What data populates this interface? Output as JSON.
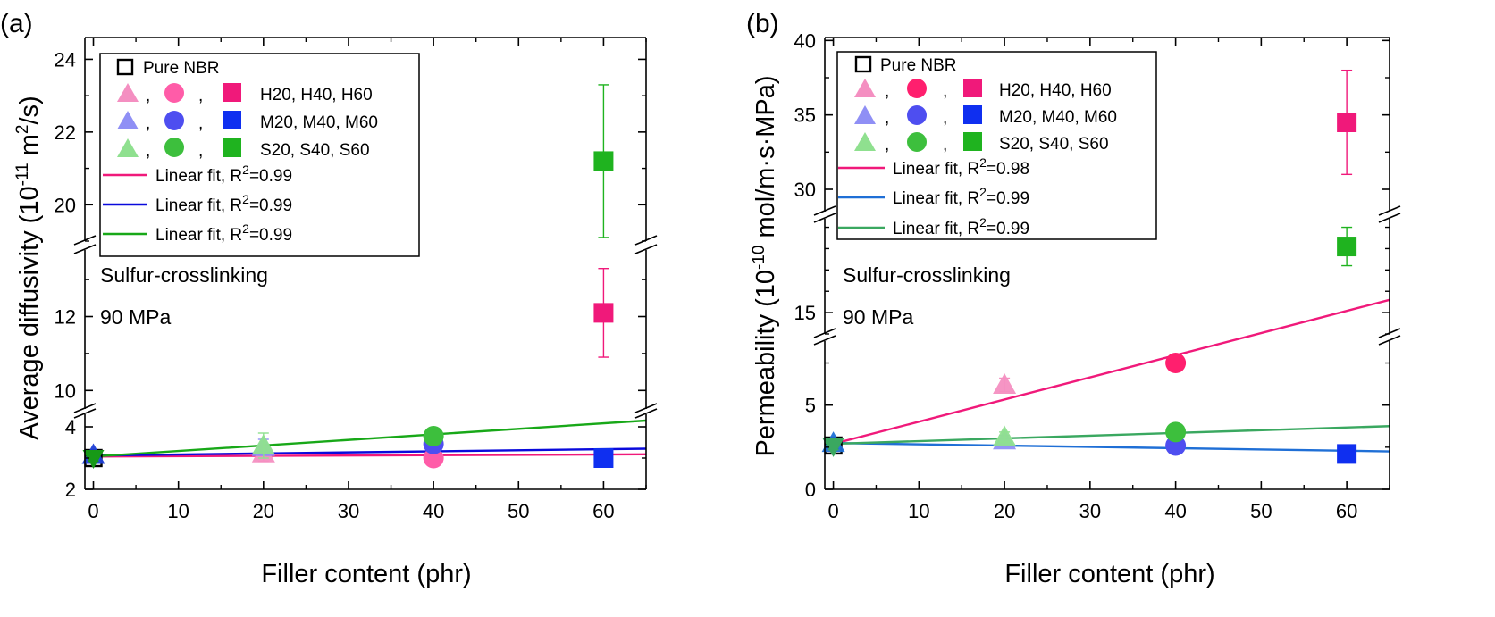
{
  "chart_data": [
    {
      "type": "scatter",
      "panel_label": "(a)",
      "xlabel": "Filler content (phr)",
      "ylabel": "Average diffusivity (10",
      "ylabel_exp": "-11",
      "ylabel_unit": " m",
      "ylabel_unit_exp": "2",
      "ylabel_tail": "/s)",
      "xlim": [
        -1,
        65
      ],
      "xticks": [
        0,
        10,
        20,
        30,
        40,
        50,
        60
      ],
      "y_segments": [
        {
          "range": [
            2,
            4.4
          ],
          "ticks": [
            2,
            4
          ]
        },
        {
          "range": [
            9.5,
            13.8
          ],
          "ticks": [
            10,
            12
          ]
        },
        {
          "range": [
            19,
            24.6
          ],
          "ticks": [
            20,
            22,
            24
          ]
        }
      ],
      "annotations": [
        "Sulfur-crosslinking",
        "90 MPa"
      ],
      "series": [
        {
          "name": "Pure NBR",
          "color": "#000000",
          "shape": "square-open",
          "points": [
            {
              "x": 0,
              "y": 3.0,
              "err": 0.1
            }
          ]
        },
        {
          "name": "H20",
          "color": "#f48fc1",
          "shape": "triangle",
          "points": [
            {
              "x": 20,
              "y": 3.15,
              "err": 0.25
            }
          ]
        },
        {
          "name": "H40",
          "color": "#ff5ca8",
          "shape": "circle",
          "points": [
            {
              "x": 40,
              "y": 3.0,
              "err": 0.15
            }
          ]
        },
        {
          "name": "H60",
          "color": "#f0197a",
          "shape": "square",
          "points": [
            {
              "x": 60,
              "y": 12.1,
              "err": 1.2
            }
          ]
        },
        {
          "name": "M20",
          "color": "#8f8ff5",
          "shape": "triangle",
          "points": [
            {
              "x": 20,
              "y": 3.35,
              "err": 0.25
            }
          ]
        },
        {
          "name": "M40",
          "color": "#4e4ef0",
          "shape": "circle",
          "points": [
            {
              "x": 40,
              "y": 3.45,
              "err": 0.15
            }
          ]
        },
        {
          "name": "M60",
          "color": "#0f2ff0",
          "shape": "square",
          "points": [
            {
              "x": 60,
              "y": 3.0,
              "err": 0.2
            }
          ]
        },
        {
          "name": "S20",
          "color": "#8fe08f",
          "shape": "triangle",
          "points": [
            {
              "x": 20,
              "y": 3.4,
              "err": 0.4
            }
          ]
        },
        {
          "name": "S40",
          "color": "#3dbf3d",
          "shape": "circle",
          "points": [
            {
              "x": 40,
              "y": 3.7,
              "err": 0.2
            }
          ]
        },
        {
          "name": "S60",
          "color": "#1fb31f",
          "shape": "square",
          "points": [
            {
              "x": 60,
              "y": 21.2,
              "err": 2.1
            }
          ]
        },
        {
          "name": "Pure NBR (blue)",
          "color": "#1f3fd6",
          "shape": "triangle",
          "points": [
            {
              "x": 0,
              "y": 3.1,
              "err": 0.1
            }
          ]
        },
        {
          "name": "Pure NBR (green)",
          "color": "#179917",
          "shape": "triangle-down",
          "points": [
            {
              "x": 0,
              "y": 3.0,
              "err": 0.1
            }
          ]
        }
      ],
      "fits": [
        {
          "label": "Linear fit, R",
          "exp": "2",
          "tail": "=0.99",
          "color": "#f0197a",
          "x": [
            0,
            65
          ],
          "y": [
            3.05,
            3.12
          ]
        },
        {
          "label": "Linear fit, R",
          "exp": "2",
          "tail": "=0.99",
          "color": "#0a0adc",
          "x": [
            0,
            65
          ],
          "y": [
            3.08,
            3.3
          ]
        },
        {
          "label": "Linear fit, R",
          "exp": "2",
          "tail": "=0.99",
          "color": "#18a818",
          "x": [
            0,
            65
          ],
          "y": [
            3.05,
            4.2
          ]
        }
      ],
      "legend_rows": [
        "Pure NBR",
        "H20, H40, H60",
        "M20, M40, M60",
        "S20, S40, S60"
      ]
    },
    {
      "type": "scatter",
      "panel_label": "(b)",
      "xlabel": "Filler content (phr)",
      "ylabel": "Permeability (10",
      "ylabel_exp": "-10",
      "ylabel_unit": " mol/m·s·MPa)",
      "ylabel_unit_exp": "",
      "ylabel_tail": "",
      "xlim": [
        -1,
        65
      ],
      "xticks": [
        0,
        10,
        20,
        30,
        40,
        50,
        60
      ],
      "y_segments": [
        {
          "range": [
            0,
            8.8
          ],
          "ticks": [
            0,
            5
          ]
        },
        {
          "range": [
            14,
            19.4
          ],
          "ticks": [
            15
          ]
        },
        {
          "range": [
            28.5,
            40.2
          ],
          "ticks": [
            30,
            35,
            40
          ]
        }
      ],
      "annotations": [
        "Sulfur-crosslinking",
        "90 MPa"
      ],
      "series": [
        {
          "name": "Pure NBR",
          "color": "#000000",
          "shape": "square-open",
          "points": [
            {
              "x": 0,
              "y": 2.6,
              "err": 0.2
            }
          ]
        },
        {
          "name": "H20",
          "color": "#f48fc1",
          "shape": "triangle",
          "points": [
            {
              "x": 20,
              "y": 6.2,
              "err": 0.4
            }
          ]
        },
        {
          "name": "H40",
          "color": "#ff1f6e",
          "shape": "circle",
          "points": [
            {
              "x": 40,
              "y": 7.5,
              "err": 0.5
            }
          ]
        },
        {
          "name": "H60",
          "color": "#f0197a",
          "shape": "square",
          "points": [
            {
              "x": 60,
              "y": 34.5,
              "err": 3.5
            }
          ]
        },
        {
          "name": "M20",
          "color": "#8f8ff5",
          "shape": "triangle",
          "points": [
            {
              "x": 20,
              "y": 2.9,
              "err": 0.3
            }
          ]
        },
        {
          "name": "M40",
          "color": "#4e4ef0",
          "shape": "circle",
          "points": [
            {
              "x": 40,
              "y": 2.6,
              "err": 0.2
            }
          ]
        },
        {
          "name": "M60",
          "color": "#0f2ff0",
          "shape": "square",
          "points": [
            {
              "x": 60,
              "y": 2.1,
              "err": 0.2
            }
          ]
        },
        {
          "name": "S20",
          "color": "#8fe08f",
          "shape": "triangle",
          "points": [
            {
              "x": 20,
              "y": 3.1,
              "err": 0.3
            }
          ]
        },
        {
          "name": "S40",
          "color": "#3dbf3d",
          "shape": "circle",
          "points": [
            {
              "x": 40,
              "y": 3.4,
              "err": 0.2
            }
          ]
        },
        {
          "name": "S60",
          "color": "#1fb31f",
          "shape": "square",
          "points": [
            {
              "x": 60,
              "y": 18.1,
              "err": 0.9
            }
          ]
        },
        {
          "name": "Pure NBR (blue)",
          "color": "#1f6fd6",
          "shape": "triangle",
          "points": [
            {
              "x": 0,
              "y": 2.75,
              "err": 0.2
            }
          ]
        },
        {
          "name": "Pure NBR (green)",
          "color": "#3aa860",
          "shape": "triangle-down",
          "points": [
            {
              "x": 0,
              "y": 2.55,
              "err": 0.2
            }
          ]
        }
      ],
      "fits": [
        {
          "label": "Linear fit, R",
          "exp": "2",
          "tail": "=0.98",
          "color": "#f0197a",
          "x": [
            0,
            65
          ],
          "y": [
            2.7,
            15.6
          ]
        },
        {
          "label": "Linear fit, R",
          "exp": "2",
          "tail": "=0.99",
          "color": "#1f6fd6",
          "x": [
            0,
            65
          ],
          "y": [
            2.75,
            2.25
          ]
        },
        {
          "label": "Linear fit, R",
          "exp": "2",
          "tail": "=0.99",
          "color": "#3aa860",
          "x": [
            0,
            65
          ],
          "y": [
            2.7,
            3.75
          ]
        }
      ],
      "legend_rows": [
        "Pure NBR",
        "H20, H40, H60",
        "M20, M40, M60",
        "S20, S40, S60"
      ]
    }
  ]
}
